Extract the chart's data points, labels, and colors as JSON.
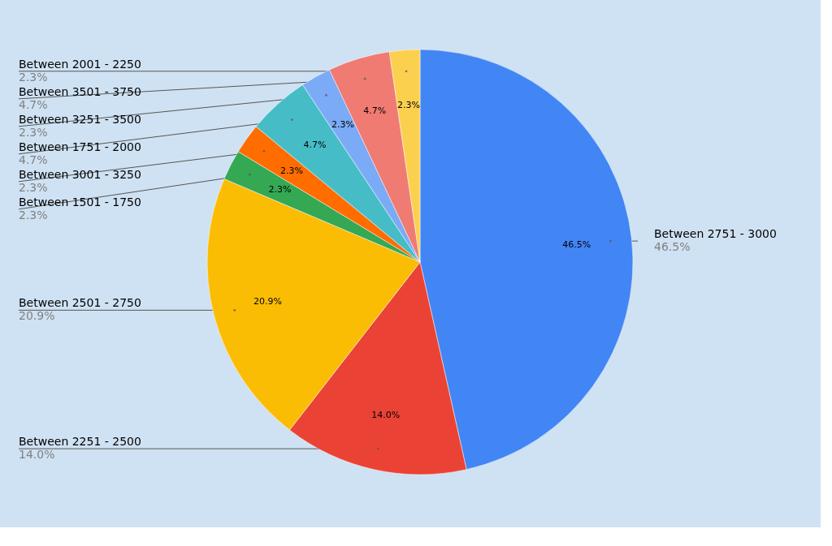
{
  "chart_data": {
    "type": "pie",
    "categories": [
      "Between 2751 - 3000",
      "Between 2251 - 2500",
      "Between 2501 - 2750",
      "Between 1501 - 1750",
      "Between 3001 - 3250",
      "Between 1751 - 2000",
      "Between 3251 - 3500",
      "Between 3501 - 3750",
      "Between 2001 - 2250"
    ],
    "values": [
      46.5,
      14.0,
      20.9,
      2.3,
      2.3,
      4.7,
      2.3,
      4.7,
      2.3
    ],
    "colors": [
      "#4285f4",
      "#ea4335",
      "#fbbc04",
      "#34a853",
      "#ff6d01",
      "#46bdc6",
      "#7baaf7",
      "#f07b72",
      "#fcd04f"
    ],
    "value_labels": [
      "46.5%",
      "14.0%",
      "20.9%",
      "2.3%",
      "2.3%",
      "4.7%",
      "2.3%",
      "4.7%",
      "2.3%"
    ]
  }
}
